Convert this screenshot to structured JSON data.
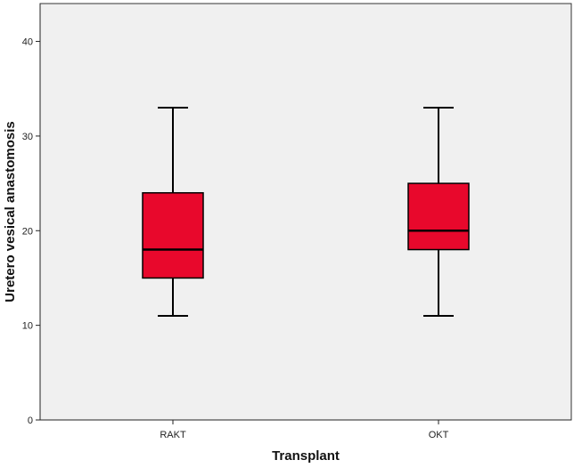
{
  "chart_data": {
    "type": "boxplot",
    "xlabel": "Transplant",
    "ylabel": "Uretero vesical anastomosis",
    "ylim": [
      0,
      44
    ],
    "yticks": [
      0,
      10,
      20,
      30,
      40
    ],
    "categories": [
      "RAKT",
      "OKT"
    ],
    "boxes": [
      {
        "category": "RAKT",
        "min": 11,
        "q1": 15,
        "median": 18,
        "q3": 24,
        "max": 33
      },
      {
        "category": "OKT",
        "min": 11,
        "q1": 18,
        "median": 20,
        "q3": 25,
        "max": 33
      }
    ],
    "grid": false,
    "legend": "none",
    "colors": {
      "plot_background": "#f0f0f0",
      "box_fill": "#e8082c",
      "stroke": "#000000"
    }
  }
}
